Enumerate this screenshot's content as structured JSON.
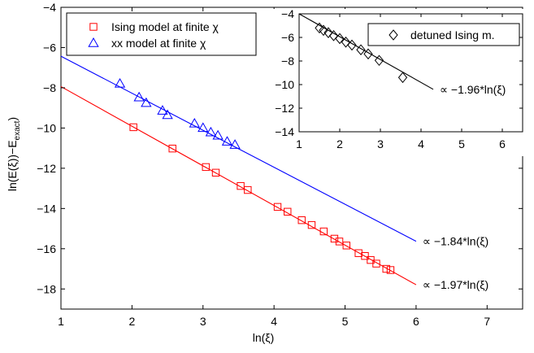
{
  "chart_data": [
    {
      "type": "scatter",
      "xlabel": "ln(ξ)",
      "ylabel": "ln(E(ξ))−E",
      "ylabel_sub": "exact",
      "ylabel_close": ")",
      "xlim": [
        1,
        7.5
      ],
      "ylim": [
        -19,
        -4
      ],
      "xticks": [
        1,
        2,
        3,
        4,
        5,
        6,
        7
      ],
      "yticks": [
        -4,
        -6,
        -8,
        -10,
        -12,
        -14,
        -16,
        -18
      ],
      "xtick_labels": [
        "1",
        "2",
        "3",
        "4",
        "5",
        "6",
        "7"
      ],
      "ytick_labels": [
        "−4",
        "−6",
        "−8",
        "−10",
        "−12",
        "−14",
        "−16",
        "−18"
      ],
      "grid": false,
      "legend_position": "top-left",
      "series": [
        {
          "name": "Ising model at finite χ",
          "marker": "square",
          "color": "#ff0000",
          "points": [
            [
              2.02,
              -9.96
            ],
            [
              2.57,
              -11.02
            ],
            [
              3.04,
              -11.94
            ],
            [
              3.18,
              -12.22
            ],
            [
              3.53,
              -12.88
            ],
            [
              3.63,
              -13.08
            ],
            [
              4.05,
              -13.92
            ],
            [
              4.19,
              -14.16
            ],
            [
              4.39,
              -14.58
            ],
            [
              4.53,
              -14.82
            ],
            [
              4.7,
              -15.14
            ],
            [
              4.85,
              -15.5
            ],
            [
              4.92,
              -15.64
            ],
            [
              5.02,
              -15.84
            ],
            [
              5.19,
              -16.22
            ],
            [
              5.28,
              -16.36
            ],
            [
              5.36,
              -16.56
            ],
            [
              5.44,
              -16.74
            ],
            [
              5.58,
              -17.0
            ],
            [
              5.64,
              -17.06
            ]
          ],
          "fit": {
            "x": [
              1,
              6
            ],
            "y": [
              -7.94,
              -17.79
            ],
            "color": "#ff0000"
          },
          "fit_label": "∝ −1.97*ln(ξ)"
        },
        {
          "name": "xx model at finite χ",
          "marker": "triangle",
          "color": "#0000ff",
          "points": [
            [
              1.83,
              -7.8
            ],
            [
              2.1,
              -8.48
            ],
            [
              2.2,
              -8.76
            ],
            [
              2.43,
              -9.14
            ],
            [
              2.5,
              -9.36
            ],
            [
              2.88,
              -9.78
            ],
            [
              3.0,
              -10.0
            ],
            [
              3.11,
              -10.22
            ],
            [
              3.21,
              -10.38
            ],
            [
              3.34,
              -10.68
            ],
            [
              3.45,
              -10.84
            ]
          ],
          "fit": {
            "x": [
              1,
              6
            ],
            "y": [
              -6.43,
              -15.63
            ],
            "color": "#0000ff"
          },
          "fit_label": "∝ −1.84*ln(ξ)"
        }
      ]
    },
    {
      "type": "scatter",
      "inset": true,
      "xlim": [
        1,
        6.5
      ],
      "ylim": [
        -14,
        -4
      ],
      "xticks": [
        1,
        2,
        3,
        4,
        5,
        6
      ],
      "yticks": [
        -4,
        -6,
        -8,
        -10,
        -12,
        -14
      ],
      "xtick_labels": [
        "1",
        "2",
        "3",
        "4",
        "5",
        "6"
      ],
      "ytick_labels": [
        "−4",
        "−6",
        "−8",
        "−10",
        "−12",
        "−14"
      ],
      "grid": false,
      "legend_position": "top-right",
      "series": [
        {
          "name": "detuned Ising m.",
          "marker": "diamond",
          "color": "#000000",
          "points": [
            [
              1.5,
              -5.2
            ],
            [
              1.6,
              -5.4
            ],
            [
              1.72,
              -5.6
            ],
            [
              1.85,
              -5.85
            ],
            [
              2.0,
              -6.1
            ],
            [
              2.15,
              -6.4
            ],
            [
              2.3,
              -6.65
            ],
            [
              2.52,
              -7.05
            ],
            [
              2.7,
              -7.4
            ],
            [
              2.97,
              -7.95
            ],
            [
              3.55,
              -9.4
            ]
          ],
          "fit": {
            "x": [
              1,
              4.3
            ],
            "y": [
              -4.0,
              -10.4
            ],
            "color": "#000000"
          },
          "fit_label": "∝ −1.96*ln(ξ)"
        }
      ]
    }
  ]
}
